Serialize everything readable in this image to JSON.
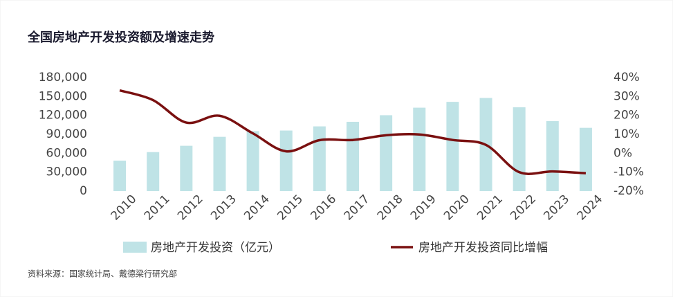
{
  "chart_data": {
    "type": "bar_line",
    "title": "全国房地产开发投资额及增速走势",
    "source": "资料来源：国家统计局、戴德梁行研究部",
    "categories": [
      "2010",
      "2011",
      "2012",
      "2013",
      "2014",
      "2015",
      "2016",
      "2017",
      "2018",
      "2019",
      "2020",
      "2021",
      "2022",
      "2023",
      "2024"
    ],
    "series": [
      {
        "name": "房地产开发投资（亿元）",
        "type": "bar",
        "color": "#bfe3e6",
        "values": [
          48267,
          61797,
          71804,
          86013,
          95036,
          95979,
          102581,
          109799,
          120264,
          132194,
          141443,
          147602,
          132895,
          110913,
          100280
        ]
      },
      {
        "name": "房地产开发投资同比增幅",
        "type": "line",
        "axis": "y2",
        "color": "#7a1010",
        "values": [
          33.2,
          28.1,
          16.2,
          19.8,
          10.5,
          1.0,
          6.9,
          7.0,
          9.5,
          9.9,
          7.0,
          4.4,
          -10.0,
          -9.6,
          -10.6
        ]
      }
    ],
    "ylim": [
      0,
      180000
    ],
    "yticks": [
      0,
      {
        "value": 30000,
        "label": "30,000"
      },
      {
        "value": 60000,
        "label": "60,000"
      },
      {
        "value": 90000,
        "label": "90,000"
      },
      {
        "value": 120000,
        "label": "120,000"
      },
      {
        "value": 150000,
        "label": "150,000"
      },
      {
        "value": 180000,
        "label": "180,000"
      }
    ],
    "y2lim": [
      -20,
      40
    ],
    "y2ticks": [
      {
        "value": -20,
        "label": "-20%"
      },
      {
        "value": -10,
        "label": "-10%"
      },
      {
        "value": 0,
        "label": "0%"
      },
      {
        "value": 10,
        "label": "10%"
      },
      {
        "value": 20,
        "label": "20%"
      },
      {
        "value": 30,
        "label": "30%"
      },
      {
        "value": 40,
        "label": "40%"
      }
    ],
    "grid": false
  }
}
